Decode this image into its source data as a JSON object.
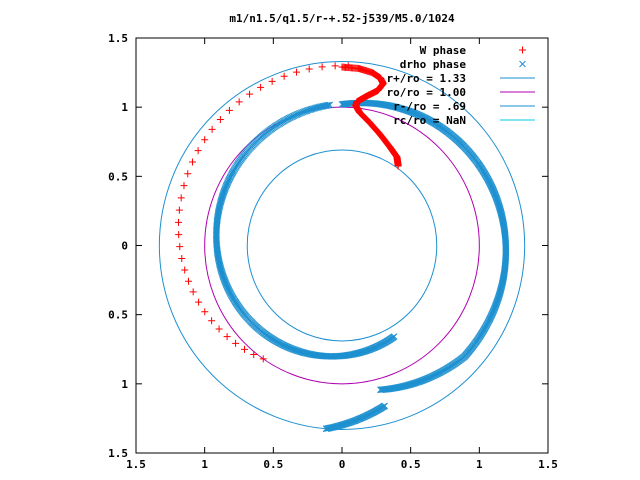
{
  "chart_data": {
    "type": "scatter",
    "title": "m1/n1.5/q1.5/r-+.52-j539/M5.0/1024",
    "xlim": [
      -1.5,
      1.5
    ],
    "ylim": [
      -1.5,
      1.5
    ],
    "xticks": [
      -1.5,
      -1,
      -0.5,
      0,
      0.5,
      1,
      1.5
    ],
    "xtick_labels": [
      "1.5",
      "1",
      "0.5",
      "0",
      "0.5",
      "1",
      "1.5"
    ],
    "yticks": [
      1.5,
      1,
      0.5,
      0,
      -0.5,
      -1,
      -1.5
    ],
    "ytick_labels": [
      "1.5",
      "1",
      "0.5",
      "0",
      "0.5",
      "1",
      "1.5"
    ],
    "grid": false,
    "legend_position": "top-right",
    "series": [
      {
        "name": "W phase",
        "kind": "points",
        "marker": "plus",
        "color": "#ff0000",
        "points_polar": {
          "sparse": {
            "r_start": 1.3,
            "r_end": 1.0,
            "theta_start_deg": 88,
            "theta_end_deg": 235,
            "count": 36
          },
          "dense_path": [
            [
              0.0,
              1.29
            ],
            [
              0.12,
              1.28
            ],
            [
              0.22,
              1.25
            ],
            [
              0.28,
              1.21
            ],
            [
              0.3,
              1.17
            ],
            [
              0.26,
              1.12
            ],
            [
              0.18,
              1.08
            ],
            [
              0.11,
              1.04
            ],
            [
              0.1,
              1.01
            ],
            [
              0.13,
              0.96
            ],
            [
              0.2,
              0.89
            ],
            [
              0.28,
              0.8
            ],
            [
              0.35,
              0.71
            ],
            [
              0.4,
              0.64
            ],
            [
              0.41,
              0.57
            ]
          ]
        }
      },
      {
        "name": "drho phase",
        "kind": "points",
        "marker": "cross",
        "color": "#1e90d0",
        "spiral": {
          "r_start": 1.02,
          "r_end": 1.19,
          "theta_start_deg": 90,
          "theta_end_deg": 255,
          "inner_r_start": 1.02,
          "inner_r_end": 0.76,
          "inner_theta_start_deg": 95,
          "inner_theta_end_deg": 300
        }
      },
      {
        "name": "r+/ro = 1.33",
        "kind": "circle",
        "radius": 1.33,
        "color": "#1e90d0"
      },
      {
        "name": "ro/ro = 1.00",
        "kind": "circle",
        "radius": 1.0,
        "color": "#b000b0"
      },
      {
        "name": "r-/ro = .69",
        "kind": "circle",
        "radius": 0.69,
        "color": "#1e90d0"
      },
      {
        "name": "rc/ro = NaN",
        "kind": "circle",
        "radius": null,
        "color": "#00c8e6"
      }
    ]
  }
}
